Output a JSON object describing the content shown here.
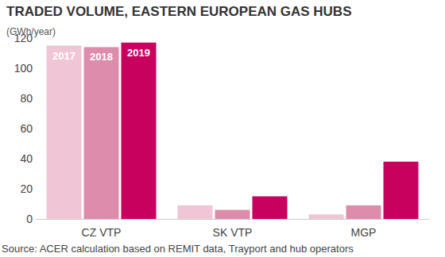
{
  "chart_data": {
    "type": "bar",
    "title": "TRADED VOLUME, EASTERN EUROPEAN GAS HUBS",
    "y_label": "(GWh/year)",
    "source": "Source: ACER calculation based on REMIT data, Trayport and hub operators",
    "categories": [
      "CZ VTP",
      "SK VTP",
      "MGP"
    ],
    "series": [
      {
        "name": "2017",
        "color": "#f0c5d5",
        "values": [
          115,
          9,
          3
        ]
      },
      {
        "name": "2018",
        "color": "#dd8dab",
        "values": [
          114,
          6,
          9
        ]
      },
      {
        "name": "2019",
        "color": "#c8005e",
        "values": [
          117,
          15,
          38
        ]
      }
    ],
    "ylim": [
      0,
      120
    ],
    "yticks": [
      0,
      20,
      40,
      60,
      80,
      100,
      120
    ],
    "grid": false
  }
}
